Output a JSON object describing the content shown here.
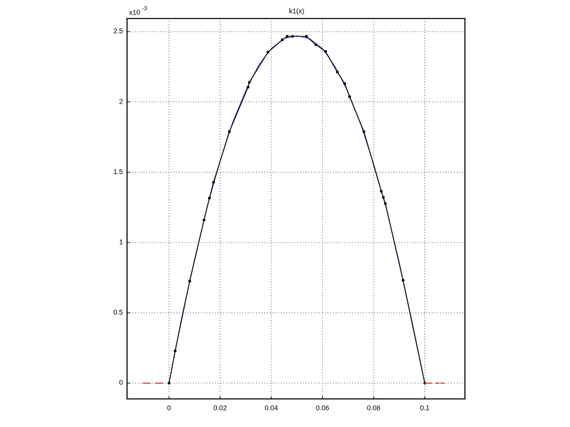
{
  "chart_data": {
    "type": "line",
    "title": "k1(x)",
    "y_multiplier": {
      "base": "x10",
      "power": "-3"
    },
    "xlim": [
      -0.0164,
      0.1157
    ],
    "ylim": [
      -0.112,
      2.593
    ],
    "xticks": [
      0,
      0.02,
      0.04,
      0.06,
      0.08,
      0.1
    ],
    "yticks": [
      0,
      0.5,
      1,
      1.5,
      2,
      2.5
    ],
    "grid": true,
    "series": [
      {
        "color": "#5a5adc",
        "marker": false,
        "x": [
          0,
          0.005,
          0.01,
          0.015,
          0.02,
          0.025,
          0.03,
          0.035,
          0.04,
          0.045,
          0.05,
          0.055,
          0.06,
          0.065,
          0.07,
          0.075,
          0.08,
          0.085,
          0.09,
          0.095,
          0.1
        ],
        "values": [
          0,
          0.47,
          0.88,
          1.26,
          1.58,
          1.86,
          2.08,
          2.26,
          2.38,
          2.45,
          2.47,
          2.45,
          2.38,
          2.25,
          2.07,
          1.84,
          1.56,
          1.24,
          0.86,
          0.44,
          0
        ]
      },
      {
        "color": "#000000",
        "marker": true,
        "x": [
          0,
          0.0024,
          0.0081,
          0.0137,
          0.0158,
          0.0174,
          0.0236,
          0.0309,
          0.0314,
          0.0387,
          0.0443,
          0.0462,
          0.0483,
          0.0537,
          0.0574,
          0.0612,
          0.0658,
          0.0687,
          0.0706,
          0.0762,
          0.083,
          0.0838,
          0.0846,
          0.0915,
          0.1
        ],
        "values": [
          0,
          0.229,
          0.726,
          1.16,
          1.316,
          1.428,
          1.789,
          2.105,
          2.139,
          2.354,
          2.441,
          2.466,
          2.466,
          2.466,
          2.407,
          2.359,
          2.212,
          2.13,
          2.037,
          1.789,
          1.365,
          1.321,
          1.277,
          0.731,
          0
        ]
      },
      {
        "color": "#e03030",
        "marker": true,
        "no_line": true,
        "x": [
          -0.0095,
          -0.008,
          -0.0045,
          -0.003,
          0.1005,
          0.102,
          0.105,
          0.107
        ],
        "values": [
          0,
          0,
          0,
          0,
          0,
          0,
          0,
          0
        ]
      }
    ]
  }
}
